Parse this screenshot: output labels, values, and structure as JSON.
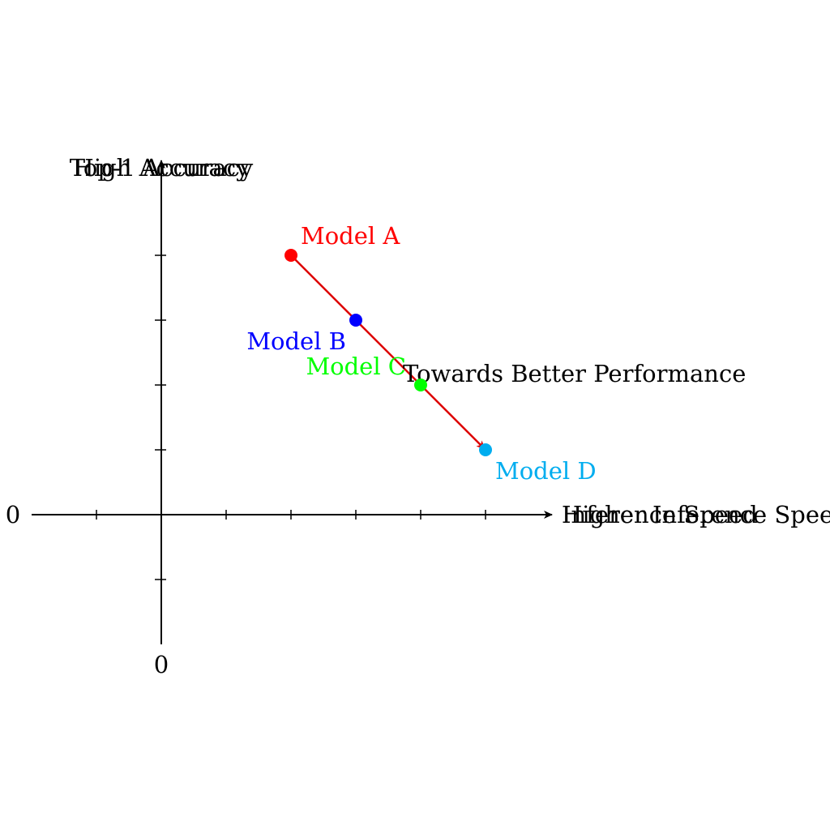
{
  "chart_data": {
    "type": "scatter",
    "title": "",
    "axes": {
      "x_labels": [
        "Inference Speed",
        "Higher Inference Speed"
      ],
      "y_labels": [
        "Top-1 Accuracy",
        "High Accuracy"
      ],
      "x_origin_label": "0",
      "y_origin_label": "0",
      "xlim": [
        -2,
        6
      ],
      "ylim": [
        -2,
        5
      ]
    },
    "points": [
      {
        "name": "Model A",
        "x": 2,
        "y": 4,
        "color": "#ff0000"
      },
      {
        "name": "Model B",
        "x": 3,
        "y": 3,
        "color": "#0000ff"
      },
      {
        "name": "Model C",
        "x": 4,
        "y": 2,
        "color": "#00ff00"
      },
      {
        "name": "Model D",
        "x": 5,
        "y": 1,
        "color": "#00adef"
      }
    ],
    "annotation": {
      "text": "Towards Better Performance",
      "from": [
        2,
        4
      ],
      "to": [
        5,
        1
      ],
      "color": "#dd0000"
    },
    "grid": false,
    "legend": "none"
  }
}
